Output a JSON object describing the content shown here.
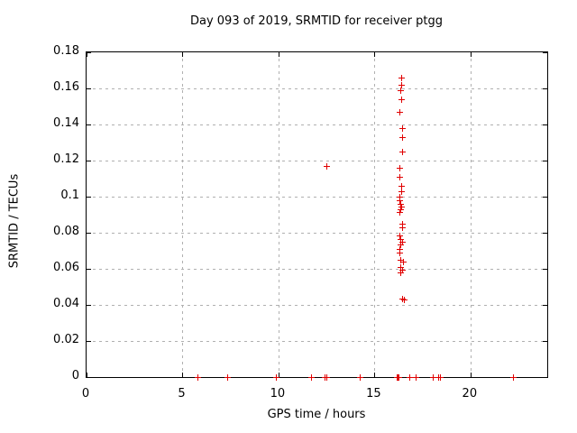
{
  "chart_data": {
    "type": "scatter",
    "title": "Day 093 of 2019, SRMTID for receiver ptgg",
    "xlabel": "GPS time / hours",
    "ylabel": "SRMTID / TECUs",
    "xlim": [
      0,
      24
    ],
    "ylim": [
      0,
      0.18
    ],
    "x_ticks": [
      0,
      5,
      10,
      15,
      20
    ],
    "x_tick_labels": [
      "0",
      "5",
      "10",
      "15",
      "20"
    ],
    "y_ticks": [
      0,
      0.02,
      0.04,
      0.06,
      0.08,
      0.1,
      0.12,
      0.14,
      0.16,
      0.18
    ],
    "y_tick_labels": [
      "0",
      "0.02",
      "0.04",
      "0.06",
      "0.08",
      "0.1",
      "0.12",
      "0.14",
      "0.16",
      "0.18"
    ],
    "grid": true,
    "legend_position": "none",
    "marker_style": "plus",
    "series": [
      {
        "name": "SRMTID",
        "points": [
          [
            16.4,
            0.166
          ],
          [
            16.4,
            0.162
          ],
          [
            16.35,
            0.159
          ],
          [
            16.4,
            0.154
          ],
          [
            16.3,
            0.147
          ],
          [
            16.45,
            0.138
          ],
          [
            16.45,
            0.133
          ],
          [
            16.45,
            0.125
          ],
          [
            12.53,
            0.117
          ],
          [
            16.3,
            0.116
          ],
          [
            16.3,
            0.111
          ],
          [
            16.4,
            0.106
          ],
          [
            16.4,
            0.103
          ],
          [
            16.3,
            0.1
          ],
          [
            16.3,
            0.098
          ],
          [
            16.35,
            0.096
          ],
          [
            16.4,
            0.0945
          ],
          [
            16.35,
            0.093
          ],
          [
            16.3,
            0.0915
          ],
          [
            16.45,
            0.085
          ],
          [
            16.45,
            0.083
          ],
          [
            16.3,
            0.0785
          ],
          [
            16.35,
            0.0765
          ],
          [
            16.45,
            0.075
          ],
          [
            16.35,
            0.0735
          ],
          [
            16.3,
            0.071
          ],
          [
            16.3,
            0.069
          ],
          [
            16.35,
            0.065
          ],
          [
            16.5,
            0.064
          ],
          [
            16.35,
            0.061
          ],
          [
            16.45,
            0.0595
          ],
          [
            16.35,
            0.058
          ],
          [
            16.45,
            0.0432
          ],
          [
            16.55,
            0.0428
          ],
          [
            5.78,
            0
          ],
          [
            7.35,
            0
          ],
          [
            9.9,
            0
          ],
          [
            11.7,
            0
          ],
          [
            12.42,
            0
          ],
          [
            12.5,
            0
          ],
          [
            14.27,
            0
          ],
          [
            16.17,
            0
          ],
          [
            16.22,
            0
          ],
          [
            16.28,
            0
          ],
          [
            16.85,
            0
          ],
          [
            17.16,
            0
          ],
          [
            18.08,
            0
          ],
          [
            18.35,
            0
          ],
          [
            18.42,
            0
          ],
          [
            22.25,
            0
          ]
        ]
      }
    ]
  },
  "colors": {
    "marker": "#e00000",
    "grid": "#b0b0b0",
    "axis": "#000000",
    "background": "#ffffff"
  }
}
